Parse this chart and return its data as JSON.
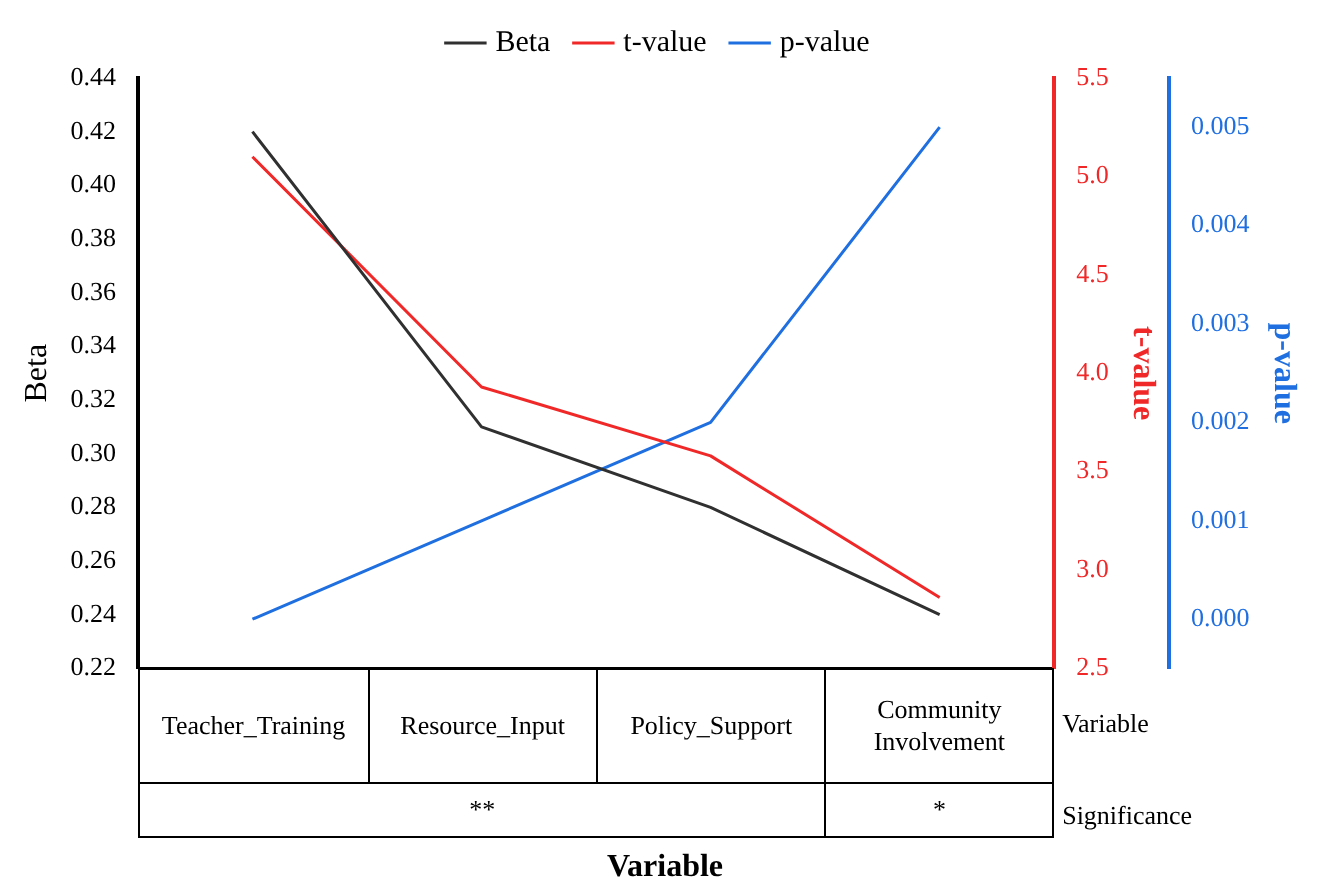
{
  "chart_data": {
    "type": "line",
    "xlabel": "Variable",
    "ylabel": "Beta",
    "y2label": "t-value",
    "y3label": "p-value",
    "categories": [
      "Teacher_Training",
      "Resource_Input",
      "Policy_Support",
      "Community Involvement"
    ],
    "series": [
      {
        "name": "Beta",
        "color": "#303030",
        "values": [
          0.42,
          0.31,
          0.28,
          0.24
        ]
      },
      {
        "name": "t-value",
        "color": "#f02828",
        "axis": "y2",
        "values": [
          5.1,
          3.93,
          3.58,
          2.86
        ]
      },
      {
        "name": "p-value",
        "color": "#1f6fe0",
        "axis": "y3",
        "values": [
          0.0,
          0.001,
          0.002,
          0.005
        ]
      }
    ],
    "ylim": [
      0.22,
      0.44
    ],
    "yticks": [
      {
        "value": 0.22,
        "label": "0.22"
      },
      {
        "value": 0.24,
        "label": "0.24"
      },
      {
        "value": 0.26,
        "label": "0.26"
      },
      {
        "value": 0.28,
        "label": "0.28"
      },
      {
        "value": 0.3,
        "label": "0.30"
      },
      {
        "value": 0.32,
        "label": "0.32"
      },
      {
        "value": 0.34,
        "label": "0.34"
      },
      {
        "value": 0.36,
        "label": "0.36"
      },
      {
        "value": 0.38,
        "label": "0.38"
      },
      {
        "value": 0.4,
        "label": "0.40"
      },
      {
        "value": 0.42,
        "label": "0.42"
      },
      {
        "value": 0.44,
        "label": "0.44"
      }
    ],
    "y2lim": [
      2.5,
      5.5
    ],
    "y2ticks": [
      2.5,
      {
        "value": 3,
        "label": "3.0"
      },
      3.5,
      {
        "value": 4,
        "label": "4.0"
      },
      4.5,
      {
        "value": 5,
        "label": "5.0"
      },
      5.5
    ],
    "y3lim": [
      -0.0005,
      0.0055
    ],
    "y3ticks": [
      {
        "value": 0,
        "label": "0.000"
      },
      {
        "value": 0.001,
        "label": "0.001"
      },
      {
        "value": 0.002,
        "label": "0.002"
      },
      {
        "value": 0.003,
        "label": "0.003"
      },
      {
        "value": 0.004,
        "label": "0.004"
      },
      {
        "value": 0.005,
        "label": "0.005"
      }
    ],
    "legend": "top",
    "marker": "none",
    "annotations": [
      "Variable",
      "Significance",
      "**",
      "*"
    ]
  }
}
